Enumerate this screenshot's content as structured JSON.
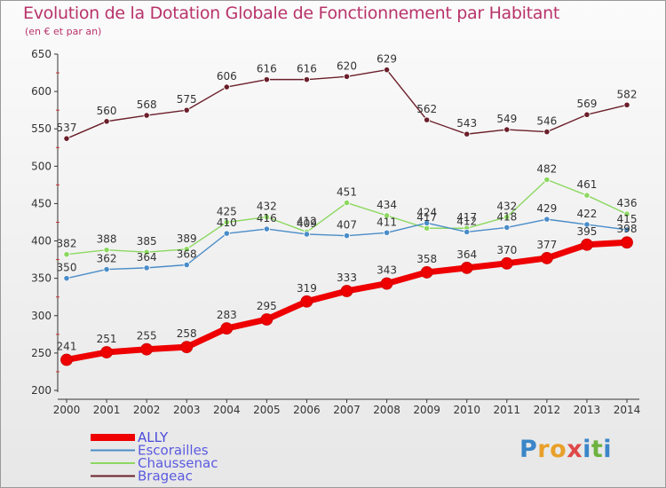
{
  "title": "Evolution de la Dotation Globale de Fonctionnement par Habitant",
  "subtitle": "(en € et par an)",
  "logo": {
    "letters": [
      {
        "ch": "P",
        "color": "#3a86c8"
      },
      {
        "ch": "r",
        "color": "#e8a02a"
      },
      {
        "ch": "o",
        "color": "#e8a02a"
      },
      {
        "ch": "x",
        "color": "#e04848"
      },
      {
        "ch": "i",
        "color": "#3a86c8"
      },
      {
        "ch": "t",
        "color": "#6db33f"
      },
      {
        "ch": "i",
        "color": "#3a86c8"
      }
    ]
  },
  "chart_data": {
    "type": "line",
    "title": "Evolution de la Dotation Globale de Fonctionnement par Habitant",
    "subtitle": "(en € et par an)",
    "x": [
      "2000",
      "2001",
      "2002",
      "2003",
      "2004",
      "2005",
      "2006",
      "2007",
      "2008",
      "2009",
      "2010",
      "2011",
      "2012",
      "2013",
      "2014"
    ],
    "ylim": [
      200,
      650
    ],
    "yticks": [
      200,
      250,
      300,
      350,
      400,
      450,
      500,
      550,
      600,
      650
    ],
    "grid": false,
    "legend_position": "bottom-left",
    "series": [
      {
        "name": "ALLY",
        "color": "#ee0000",
        "values": [
          241,
          251,
          255,
          258,
          283,
          295,
          319,
          333,
          343,
          358,
          364,
          370,
          377,
          395,
          398
        ]
      },
      {
        "name": "Escorailles",
        "color": "#4a8cc8",
        "values": [
          350,
          362,
          364,
          368,
          410,
          416,
          409,
          407,
          411,
          424,
          412,
          418,
          429,
          422,
          415
        ]
      },
      {
        "name": "Chaussenac",
        "color": "#8cd860",
        "values": [
          382,
          388,
          385,
          389,
          425,
          432,
          412,
          451,
          434,
          417,
          417,
          432,
          482,
          461,
          436
        ]
      },
      {
        "name": "Brageac",
        "color": "#6b1f2a",
        "values": [
          537,
          560,
          568,
          575,
          606,
          616,
          616,
          620,
          629,
          562,
          543,
          549,
          546,
          569,
          582
        ]
      }
    ]
  }
}
